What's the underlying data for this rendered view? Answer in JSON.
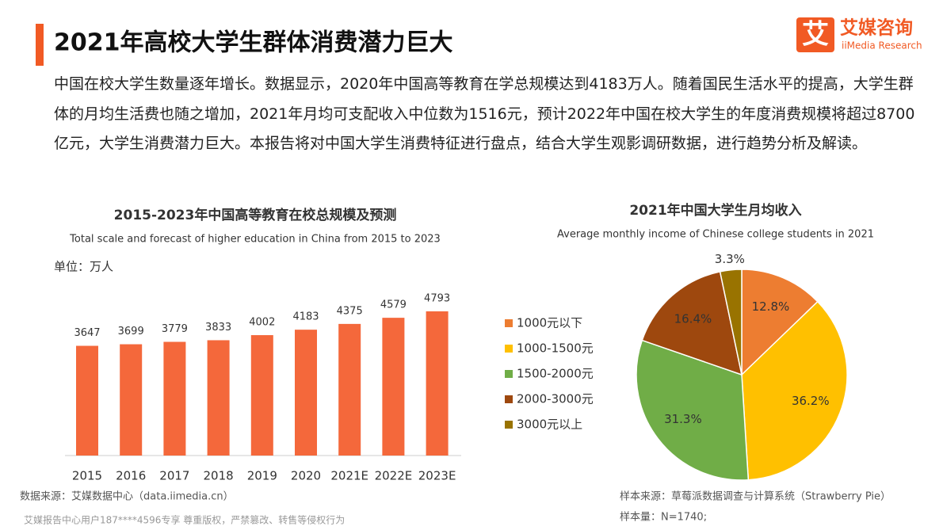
{
  "header": {
    "title": "2021年高校大学生群体消费潜力巨大"
  },
  "logo": {
    "mark": "艾",
    "name": "艾媒咨询",
    "subtitle": "iiMedia Research"
  },
  "intro": "中国在校大学生数量逐年增长。数据显示，2020年中国高等教育在学总规模达到4183万人。随着国民生活水平的提高，大学生群体的月均生活费也随之增加，2021年月均可支配收入中位数为1516元，预计2022年中国在校大学生的年度消费规模将超过8700亿元，大学生消费潜力巨大。本报告将对中国大学生消费特征进行盘点，结合大学生观影调研数据，进行趋势分析及解读。",
  "chart_data": [
    {
      "type": "bar",
      "title": "2015-2023年中国高等教育在校总规模及预测",
      "subtitle": "Total scale and forecast of higher education in China from 2015 to 2023",
      "unit": "单位：万人",
      "categories": [
        "2015",
        "2016",
        "2017",
        "2018",
        "2019",
        "2020",
        "2021E",
        "2022E",
        "2023E"
      ],
      "values": [
        3647,
        3699,
        3779,
        3833,
        4002,
        4183,
        4375,
        4579,
        4793
      ],
      "color": "#f4683b"
    },
    {
      "type": "pie",
      "title": "2021年中国大学生月均收入",
      "subtitle": "Average monthly income of Chinese college students in 2021",
      "categories": [
        "1000元以下",
        "1000-1500元",
        "1500-2000元",
        "2000-3000元",
        "3000元以上"
      ],
      "values": [
        12.8,
        36.2,
        31.3,
        16.4,
        3.3
      ],
      "value_labels": [
        "12.8%",
        "36.2%",
        "31.3%",
        "16.4%",
        "3.3%"
      ],
      "colors": [
        "#ed7d31",
        "#ffc000",
        "#70ad47",
        "#9e480e",
        "#997300"
      ]
    }
  ],
  "footer": {
    "left_source": "数据来源：艾媒数据中心（data.iimedia.cn）",
    "watermark": "艾媒报告中心用户187****4596专享 尊重版权，严禁篡改、转售等侵权行为",
    "right_source": "样本来源：草莓派数据调查与计算系统（Strawberry Pie）",
    "sample": "样本量：N=1740;"
  }
}
